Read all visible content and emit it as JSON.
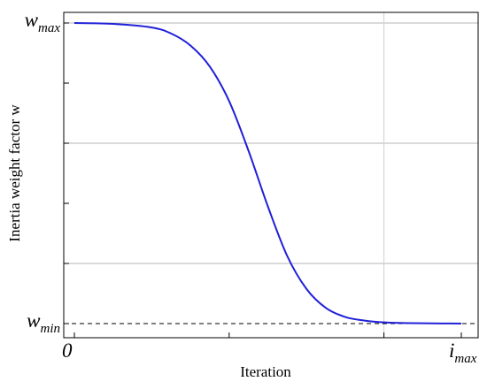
{
  "chart_data": {
    "type": "line",
    "title": "",
    "xlabel": "Iteration",
    "ylabel": "Inertia weight factor w",
    "xlim": [
      0,
      1
    ],
    "ylim": [
      0,
      1
    ],
    "x_tick_labels": [
      {
        "at": 0,
        "main": "0",
        "sub": ""
      },
      {
        "at": 1,
        "main": "i",
        "sub": "max"
      }
    ],
    "y_tick_labels": [
      {
        "at": 1,
        "main": "w",
        "sub": "max"
      },
      {
        "at": 0,
        "main": "w",
        "sub": "min"
      }
    ],
    "x_minor_ticks": [
      0.4,
      0.8
    ],
    "y_minor_ticks": [
      0.2,
      0.4,
      0.6,
      0.8
    ],
    "gridlines": {
      "horizontal": [
        0.6,
        0.2,
        1.0
      ],
      "vertical": [
        0.8
      ]
    },
    "reference_line": {
      "y": 0,
      "style": "dashed"
    },
    "series": [
      {
        "color": "#2020d8",
        "x": [
          0,
          0.1,
          0.2,
          0.25,
          0.3,
          0.35,
          0.4,
          0.45,
          0.5,
          0.55,
          0.6,
          0.65,
          0.7,
          0.75,
          0.8,
          0.85,
          0.9,
          1.0
        ],
        "y": [
          1.0,
          0.997,
          0.985,
          0.965,
          0.925,
          0.855,
          0.74,
          0.575,
          0.39,
          0.225,
          0.115,
          0.052,
          0.022,
          0.01,
          0.004,
          0.002,
          0.001,
          0.0
        ]
      }
    ]
  }
}
